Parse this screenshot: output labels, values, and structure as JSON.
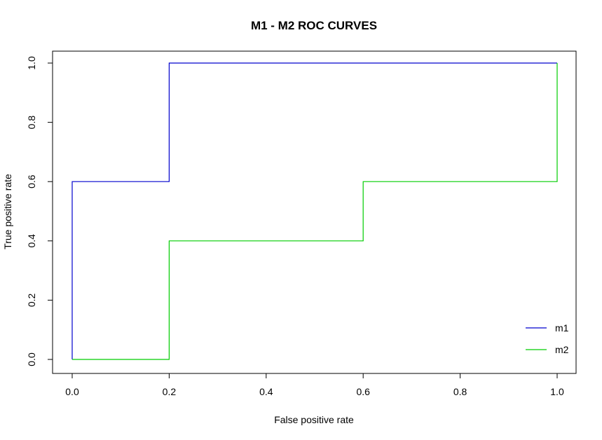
{
  "chart_data": {
    "type": "line",
    "title": "M1 - M2 ROC CURVES",
    "xlabel": "False positive rate",
    "ylabel": "True positive rate",
    "xlim": [
      0,
      1
    ],
    "ylim": [
      0,
      1
    ],
    "xticks": [
      "0.0",
      "0.2",
      "0.4",
      "0.6",
      "0.8",
      "1.0"
    ],
    "yticks": [
      "0.0",
      "0.2",
      "0.4",
      "0.6",
      "0.8",
      "1.0"
    ],
    "grid": false,
    "legend_position": "bottom-right",
    "series": [
      {
        "name": "m1",
        "color": "#0000cd",
        "x": [
          0.0,
          0.0,
          0.2,
          0.2,
          1.0,
          1.0
        ],
        "y": [
          0.0,
          0.6,
          0.6,
          1.0,
          1.0,
          1.0
        ]
      },
      {
        "name": "m2",
        "color": "#00cd00",
        "x": [
          0.0,
          0.2,
          0.2,
          0.6,
          0.6,
          1.0,
          1.0
        ],
        "y": [
          0.0,
          0.0,
          0.4,
          0.4,
          0.6,
          0.6,
          1.0
        ]
      }
    ]
  }
}
